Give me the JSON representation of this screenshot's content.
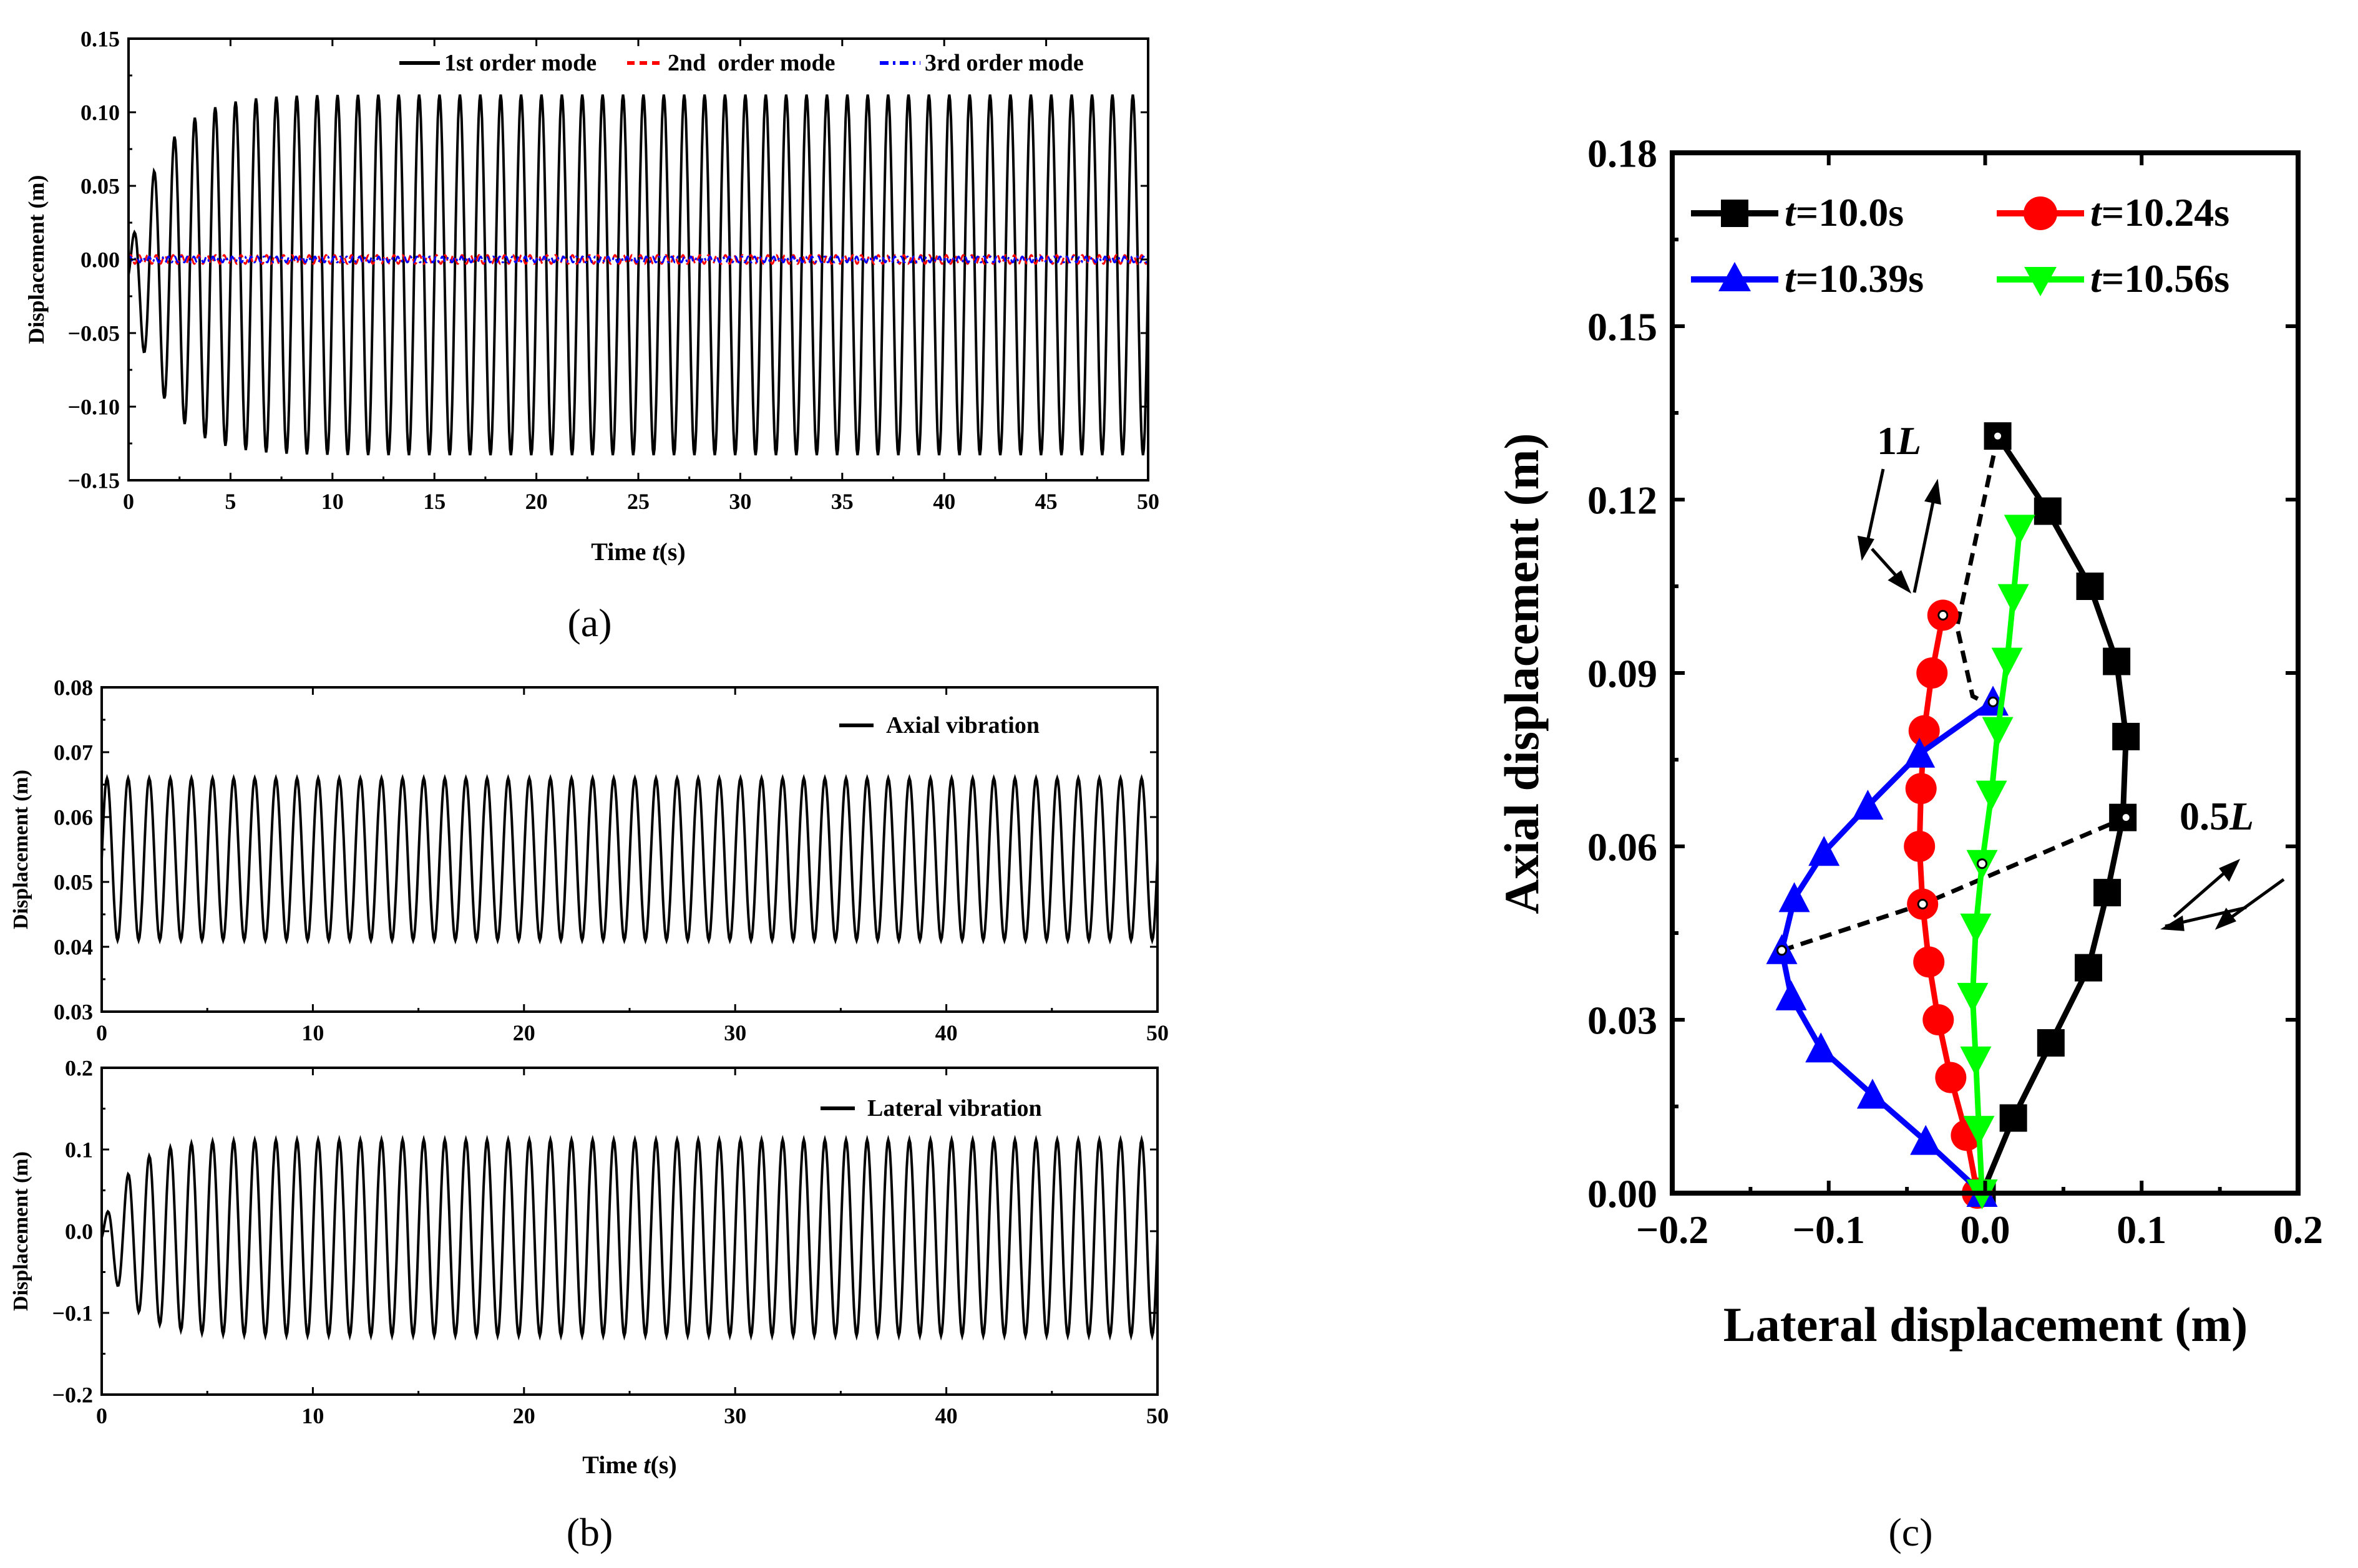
{
  "colors": {
    "black": "#000000",
    "red": "#ff0000",
    "blue": "#0000ff",
    "green": "#00ff00"
  },
  "captions": {
    "a": "(a)",
    "b": "(b)",
    "c": "(c)"
  },
  "chart_data": [
    {
      "id": "a",
      "type": "line",
      "xlabel_pre": "Time ",
      "xlabel_italic": "t",
      "xlabel_post": "(s)",
      "ylabel": "Displacement (m)",
      "xlim": [
        0,
        50
      ],
      "ylim": [
        -0.15,
        0.15
      ],
      "xticks": [
        "0",
        "5",
        "10",
        "15",
        "20",
        "25",
        "30",
        "35",
        "40",
        "45",
        "50"
      ],
      "yticks": [
        "−0.15",
        "−0.10",
        "−0.05",
        "0.00",
        "0.05",
        "0.10",
        "0.15"
      ],
      "series": [
        {
          "name": "1st order mode",
          "color": "#000000",
          "dash": "solid",
          "upper": 0.112,
          "lower": -0.133,
          "periods": 50,
          "ramp": 5
        },
        {
          "name": "2nd  order mode",
          "color": "#ff0000",
          "dash": "dashed",
          "upper": 0.003,
          "lower": -0.003,
          "periods": 120,
          "ramp": 0
        },
        {
          "name": "3rd order mode",
          "color": "#0000ff",
          "dash": "dashdot",
          "upper": 0.002,
          "lower": -0.002,
          "periods": 160,
          "ramp": 0
        }
      ]
    },
    {
      "id": "b1",
      "type": "line",
      "ylabel": "Displacement (m)",
      "xlim": [
        0,
        50
      ],
      "ylim": [
        0.03,
        0.08
      ],
      "xticks": [
        "0",
        "10",
        "20",
        "30",
        "40",
        "50"
      ],
      "yticks": [
        "0.03",
        "0.04",
        "0.05",
        "0.06",
        "0.07",
        "0.08"
      ],
      "series": [
        {
          "name": "Axial vibration",
          "color": "#000000",
          "dash": "solid",
          "upper": 0.066,
          "lower": 0.041,
          "periods": 50,
          "ramp": 0
        }
      ]
    },
    {
      "id": "b2",
      "type": "line",
      "xlabel_pre": "Time ",
      "xlabel_italic": "t",
      "xlabel_post": "(s)",
      "ylabel": "Displacement (m)",
      "xlim": [
        0,
        50
      ],
      "ylim": [
        -0.2,
        0.2
      ],
      "xticks": [
        "0",
        "10",
        "20",
        "30",
        "40",
        "50"
      ],
      "yticks": [
        "−0.2",
        "−0.1",
        "0.0",
        "0.1",
        "0.2"
      ],
      "series": [
        {
          "name": "Lateral vibration",
          "color": "#000000",
          "dash": "solid",
          "upper": 0.112,
          "lower": -0.128,
          "periods": 50,
          "ramp": 4
        }
      ]
    },
    {
      "id": "c",
      "type": "line",
      "xlabel": "Lateral displacement (m)",
      "ylabel": "Axial displacement (m)",
      "xlim": [
        -0.2,
        0.2
      ],
      "ylim": [
        0,
        0.18
      ],
      "xticks": [
        "−0.2",
        "−0.1",
        "0.0",
        "0.1",
        "0.2"
      ],
      "yticks": [
        "0.00",
        "0.03",
        "0.06",
        "0.09",
        "0.12",
        "0.15",
        "0.18"
      ],
      "series": [
        {
          "name": "t=10.0s",
          "prefix": "t",
          "suffix": "=10.0s",
          "color": "#000000",
          "marker": "square",
          "points": [
            [
              -0.002,
              0.0
            ],
            [
              0.018,
              0.013
            ],
            [
              0.042,
              0.026
            ],
            [
              0.066,
              0.039
            ],
            [
              0.078,
              0.052
            ],
            [
              0.088,
              0.065
            ],
            [
              0.09,
              0.079
            ],
            [
              0.084,
              0.092
            ],
            [
              0.067,
              0.105
            ],
            [
              0.04,
              0.118
            ],
            [
              0.008,
              0.131
            ]
          ]
        },
        {
          "name": "t=10.24s",
          "prefix": "t",
          "suffix": "=10.24s",
          "color": "#ff0000",
          "marker": "circle",
          "points": [
            [
              -0.005,
              0.0
            ],
            [
              -0.012,
              0.01
            ],
            [
              -0.022,
              0.02
            ],
            [
              -0.03,
              0.03
            ],
            [
              -0.036,
              0.04
            ],
            [
              -0.04,
              0.05
            ],
            [
              -0.042,
              0.06
            ],
            [
              -0.041,
              0.07
            ],
            [
              -0.039,
              0.08
            ],
            [
              -0.034,
              0.09
            ],
            [
              -0.027,
              0.1
            ]
          ]
        },
        {
          "name": "t=10.39s",
          "prefix": "t",
          "suffix": "=10.39s",
          "color": "#0000ff",
          "marker": "triangle-up",
          "points": [
            [
              -0.002,
              0.0
            ],
            [
              -0.038,
              0.009
            ],
            [
              -0.072,
              0.017
            ],
            [
              -0.105,
              0.025
            ],
            [
              -0.124,
              0.034
            ],
            [
              -0.13,
              0.042
            ],
            [
              -0.122,
              0.051
            ],
            [
              -0.103,
              0.059
            ],
            [
              -0.075,
              0.067
            ],
            [
              -0.042,
              0.076
            ],
            [
              0.005,
              0.085
            ]
          ]
        },
        {
          "name": "t=10.56s",
          "prefix": "t",
          "suffix": "=10.56s",
          "color": "#00ff00",
          "marker": "triangle-down",
          "points": [
            [
              -0.002,
              0.0
            ],
            [
              -0.004,
              0.011
            ],
            [
              -0.006,
              0.023
            ],
            [
              -0.008,
              0.034
            ],
            [
              -0.006,
              0.046
            ],
            [
              -0.002,
              0.057
            ],
            [
              0.004,
              0.069
            ],
            [
              0.008,
              0.08
            ],
            [
              0.014,
              0.092
            ],
            [
              0.018,
              0.103
            ],
            [
              0.022,
              0.115
            ]
          ]
        }
      ],
      "dashed_curves": [
        {
          "name": "1L envelope",
          "points": [
            [
              0.008,
              0.131
            ],
            [
              -0.018,
              0.098
            ],
            [
              -0.008,
              0.086
            ],
            [
              0.006,
              0.084
            ]
          ]
        },
        {
          "name": "0.5L envelope",
          "points": [
            [
              -0.13,
              0.042
            ],
            [
              -0.04,
              0.05
            ],
            [
              0.09,
              0.065
            ]
          ]
        }
      ],
      "annotations": [
        {
          "num": "1",
          "italic": "L"
        },
        {
          "num": "0.5",
          "italic": "L"
        }
      ]
    }
  ]
}
